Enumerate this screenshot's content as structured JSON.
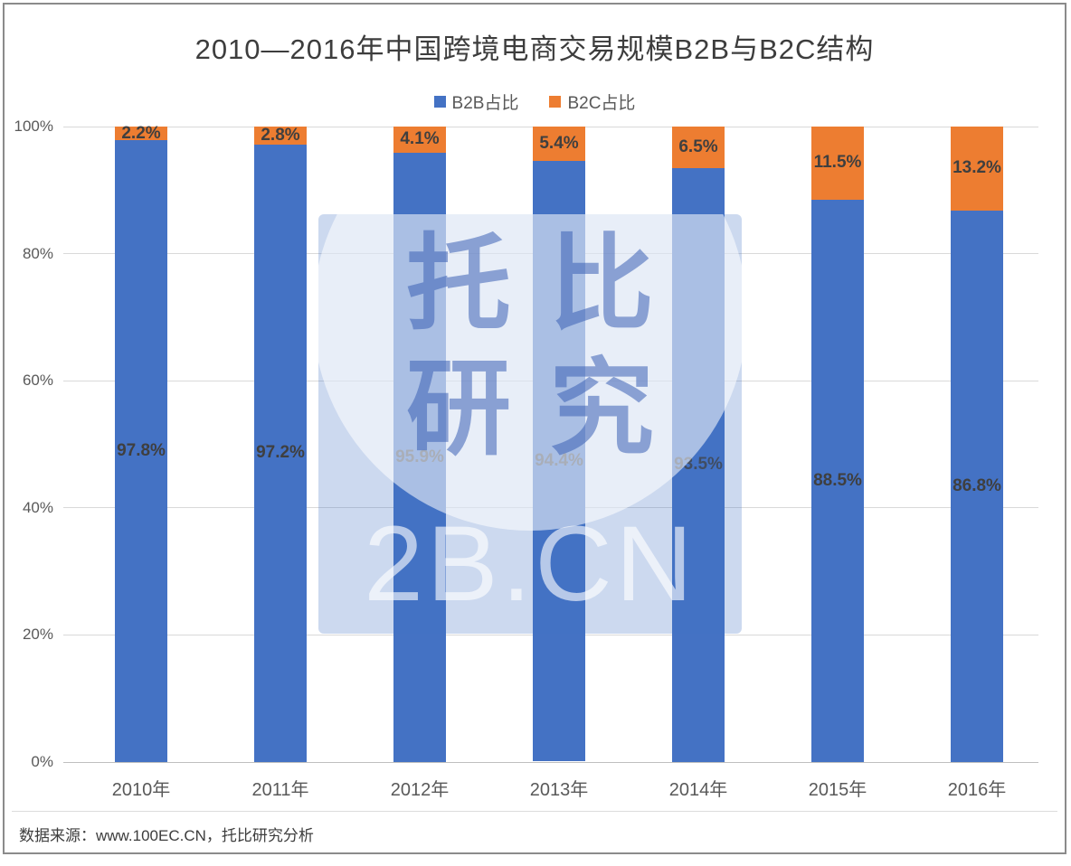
{
  "title": "2010—2016年中国跨境电商交易规模B2B与B2C结构",
  "legend": [
    {
      "label": "B2B占比",
      "color": "#4472C4"
    },
    {
      "label": "B2C占比",
      "color": "#ED7D31"
    }
  ],
  "watermark": {
    "line1": "托比",
    "line2": "研究",
    "brand": "2B.CN"
  },
  "footer": "数据来源：www.100EC.CN，托比研究分析",
  "chart_data": {
    "type": "bar",
    "stacked": true,
    "title": "2010—2016年中国跨境电商交易规模B2B与B2C结构",
    "categories": [
      "2010年",
      "2011年",
      "2012年",
      "2013年",
      "2014年",
      "2015年",
      "2016年"
    ],
    "series": [
      {
        "name": "B2B占比",
        "color": "#4472C4",
        "values": [
          97.8,
          97.2,
          95.9,
          94.4,
          93.5,
          88.5,
          86.8
        ]
      },
      {
        "name": "B2C占比",
        "color": "#ED7D31",
        "values": [
          2.2,
          2.8,
          4.1,
          5.4,
          6.5,
          11.5,
          13.2
        ]
      }
    ],
    "xlabel": "",
    "ylabel": "",
    "ylim": [
      0,
      100
    ],
    "yticks": [
      "0%",
      "20%",
      "40%",
      "60%",
      "80%",
      "100%"
    ],
    "grid": true,
    "legend_position": "top",
    "label_format": "percent-one-decimal"
  }
}
